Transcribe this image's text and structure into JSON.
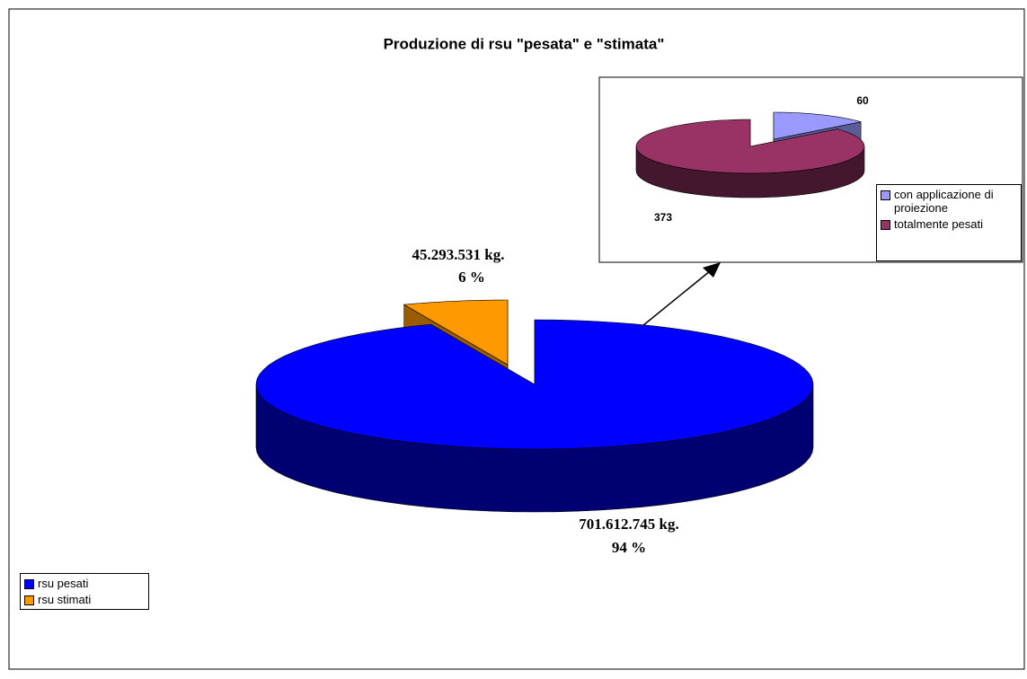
{
  "chart_data": [
    {
      "type": "pie",
      "title": "Produzione di rsu \"pesata\" e \"stimata\"",
      "categories": [
        "rsu pesati",
        "rsu stimati"
      ],
      "values": [
        701612745,
        45293531
      ],
      "value_labels": [
        "701.612.745 kg.",
        "45.293.531 kg."
      ],
      "percents": [
        94,
        6
      ],
      "percent_labels": [
        "94 %",
        "6 %"
      ],
      "colors": [
        "#0000ff",
        "#ff9900"
      ],
      "exploded": [
        false,
        true
      ],
      "legend": "left"
    },
    {
      "type": "pie",
      "categories": [
        "con applicazione di proiezione",
        "totalmente pesati"
      ],
      "values": [
        60,
        373
      ],
      "colors": [
        "#9999ff",
        "#993366"
      ],
      "exploded": [
        true,
        false
      ],
      "legend": "right"
    }
  ]
}
